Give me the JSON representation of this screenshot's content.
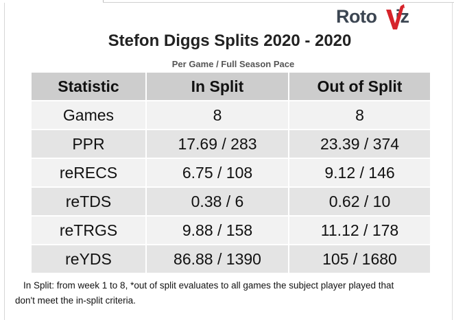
{
  "logo": {
    "text_a": "Roto",
    "text_b": "iz"
  },
  "title": "Stefon Diggs Splits 2020 - 2020",
  "subtitle": "Per Game / Full Season Pace",
  "table": {
    "headers": [
      "Statistic",
      "In Split",
      "Out of Split"
    ],
    "rows": [
      [
        "Games",
        "8",
        "8"
      ],
      [
        "PPR",
        "17.69 / 283",
        "23.39 / 374"
      ],
      [
        "reRECS",
        "6.75 / 108",
        "9.12 / 146"
      ],
      [
        "reTDS",
        "0.38 / 6",
        "0.62 / 10"
      ],
      [
        "reTRGS",
        "9.88 / 158",
        "11.12 / 178"
      ],
      [
        "reYDS",
        "86.88 / 1390",
        "105 / 1680"
      ]
    ]
  },
  "footnote": {
    "line1": "In Split: from week 1 to 8,  *out of split evaluates to all games the subject player played that",
    "line2": "don't meet the in-split criteria."
  },
  "colors": {
    "header_bg": "#cdcdcd",
    "row_light": "#f2f2f2",
    "row_dark": "#e4e4e4",
    "logo_dark": "#3c4652",
    "logo_red": "#d6232a"
  },
  "icons": [
    "rotoviz-logo-v-mark"
  ]
}
